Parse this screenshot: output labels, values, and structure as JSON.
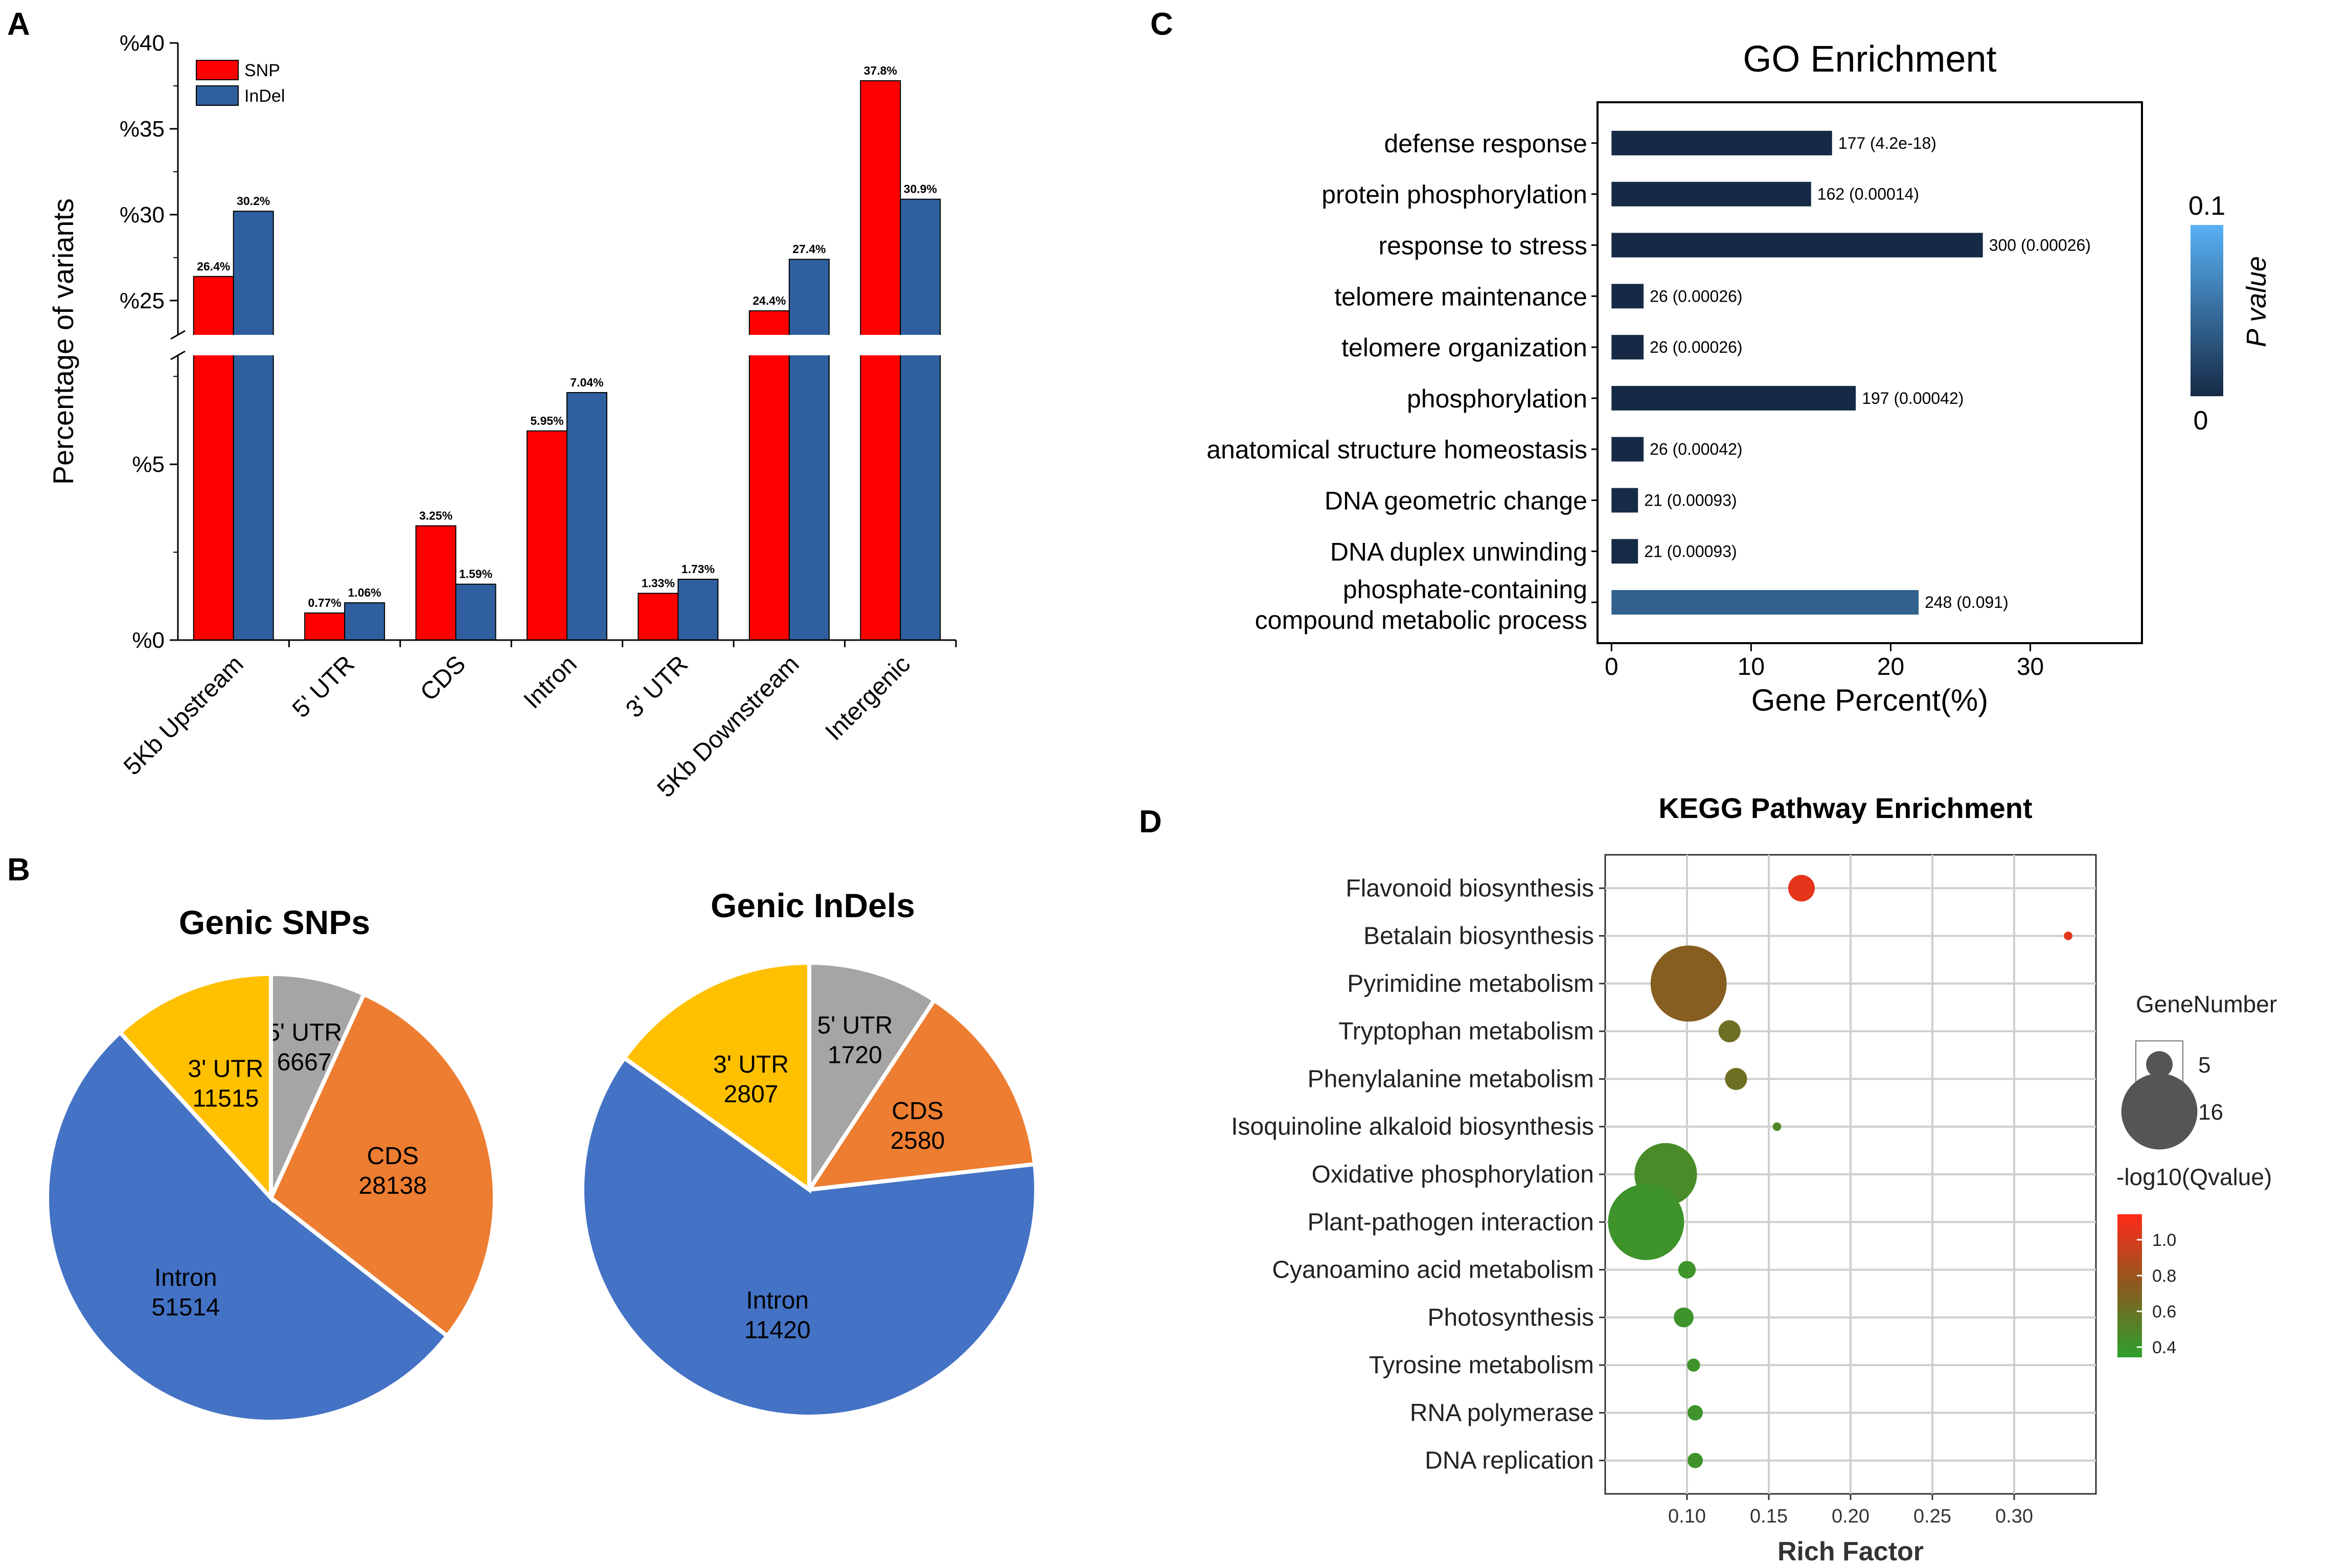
{
  "panels": {
    "a": "A",
    "b": "B",
    "c": "C",
    "d": "D"
  },
  "chart_data": [
    {
      "id": "A",
      "type": "bar",
      "ylabel": "Percentage of variants",
      "categories": [
        "5Kb Upstream",
        "5' UTR",
        "CDS",
        "Intron",
        "3' UTR",
        "5Kb Downstream",
        "Intergenic"
      ],
      "series": [
        {
          "name": "SNP",
          "color": "#ff0000",
          "values": [
            26.4,
            0.77,
            3.25,
            5.95,
            1.33,
            24.4,
            37.8
          ],
          "labels": [
            "26.4%",
            "0.77%",
            "3.25%",
            "5.95%",
            "1.33%",
            "24.4%",
            "37.8%"
          ]
        },
        {
          "name": "InDel",
          "color": "#2f5f9e",
          "values": [
            30.2,
            1.06,
            1.59,
            7.04,
            1.73,
            27.4,
            30.9
          ],
          "labels": [
            "30.2%",
            "1.06%",
            "1.59%",
            "7.04%",
            "1.73%",
            "27.4%",
            "30.9%"
          ]
        }
      ],
      "axis_break": {
        "lower_range": [
          0,
          8.1
        ],
        "upper_range": [
          23,
          40
        ]
      },
      "yticks": [
        {
          "value": 0,
          "label": "%0"
        },
        {
          "value": 5,
          "label": "%5"
        },
        {
          "value": 25,
          "label": "%25"
        },
        {
          "value": 30,
          "label": "%30"
        },
        {
          "value": 35,
          "label": "%35"
        },
        {
          "value": 40,
          "label": "%40"
        }
      ],
      "legend": "top-left"
    },
    {
      "id": "B-left",
      "type": "pie",
      "title": "Genic SNPs",
      "slices": [
        {
          "label": "5' UTR",
          "value": 6667,
          "color": "#a5a5a5"
        },
        {
          "label": "CDS",
          "value": 28138,
          "color": "#ed7d31"
        },
        {
          "label": "Intron",
          "value": 51514,
          "color": "#4472c4"
        },
        {
          "label": "3' UTR",
          "value": 11515,
          "color": "#ffc000"
        }
      ]
    },
    {
      "id": "B-right",
      "type": "pie",
      "title": "Genic InDels",
      "slices": [
        {
          "label": "5' UTR",
          "value": 1720,
          "color": "#a5a5a5"
        },
        {
          "label": "CDS",
          "value": 2580,
          "color": "#ed7d31"
        },
        {
          "label": "Intron",
          "value": 11420,
          "color": "#4472c4"
        },
        {
          "label": "3' UTR",
          "value": 2807,
          "color": "#ffc000"
        }
      ]
    },
    {
      "id": "C",
      "type": "bar",
      "orientation": "horizontal",
      "title": "GO Enrichment",
      "xlabel": "Gene Percent(%)",
      "xlim": [
        -1,
        38
      ],
      "xticks": [
        0,
        10,
        20,
        30
      ],
      "colorbar": {
        "title": "P value",
        "min_label": "0",
        "max_label": "0.1"
      },
      "bars": [
        {
          "term": [
            "defense response"
          ],
          "value": 15.8,
          "label": "177 (4.2e-18)",
          "p": 4.2e-18
        },
        {
          "term": [
            "protein phosphorylation"
          ],
          "value": 14.3,
          "label": "162 (0.00014)",
          "p": 0.00014
        },
        {
          "term": [
            "response to stress"
          ],
          "value": 26.6,
          "label": "300 (0.00026)",
          "p": 0.00026
        },
        {
          "term": [
            "telomere maintenance"
          ],
          "value": 2.3,
          "label": "26 (0.00026)",
          "p": 0.00026
        },
        {
          "term": [
            "telomere organization"
          ],
          "value": 2.3,
          "label": "26 (0.00026)",
          "p": 0.00026
        },
        {
          "term": [
            "phosphorylation"
          ],
          "value": 17.5,
          "label": "197 (0.00042)",
          "p": 0.00042
        },
        {
          "term": [
            "anatomical structure homeostasis"
          ],
          "value": 2.3,
          "label": "26 (0.00042)",
          "p": 0.00042
        },
        {
          "term": [
            "DNA geometric change"
          ],
          "value": 1.9,
          "label": "21 (0.00093)",
          "p": 0.00093
        },
        {
          "term": [
            "DNA duplex unwinding"
          ],
          "value": 1.9,
          "label": "21 (0.00093)",
          "p": 0.00093
        },
        {
          "term": [
            "phosphate-containing",
            "compound metabolic process"
          ],
          "value": 22.0,
          "label": "248 (0.091)",
          "p": 0.091
        }
      ]
    },
    {
      "id": "D",
      "type": "scatter",
      "title": "KEGG Pathway Enrichment",
      "xlabel": "Rich Factor",
      "xlim": [
        0.05,
        0.35
      ],
      "xticks": [
        0.1,
        0.15,
        0.2,
        0.25,
        0.3
      ],
      "xtick_labels": [
        "0.10",
        "0.15",
        "0.20",
        "0.25",
        "0.30"
      ],
      "size_legend_title": "GeneNumber",
      "size_legend": [
        {
          "value": 5,
          "label": "5"
        },
        {
          "value": 16,
          "label": "16"
        }
      ],
      "color_legend_title": "-log10(Qvalue)",
      "color_ticks": [
        "1.0",
        "0.8",
        "0.6",
        "0.4"
      ],
      "color_range": [
        0.3,
        1.15
      ],
      "points": [
        {
          "pathway": "Flavonoid biosynthesis",
          "x": 0.17,
          "genes": 5,
          "q": 1.05
        },
        {
          "pathway": "Betalain biosynthesis",
          "x": 0.333,
          "genes": 1,
          "q": 1.05
        },
        {
          "pathway": "Pyrimidine metabolism",
          "x": 0.101,
          "genes": 16,
          "q": 0.7
        },
        {
          "pathway": "Tryptophan metabolism",
          "x": 0.126,
          "genes": 4,
          "q": 0.6
        },
        {
          "pathway": "Phenylalanine metabolism",
          "x": 0.13,
          "genes": 4,
          "q": 0.6
        },
        {
          "pathway": "Isoquinoline alkaloid biosynthesis",
          "x": 0.155,
          "genes": 1,
          "q": 0.45
        },
        {
          "pathway": "Oxidative phosphorylation",
          "x": 0.087,
          "genes": 13,
          "q": 0.42
        },
        {
          "pathway": "Plant-pathogen interaction",
          "x": 0.075,
          "genes": 16,
          "q": 0.38
        },
        {
          "pathway": "Cyanoamino acid metabolism",
          "x": 0.1,
          "genes": 3,
          "q": 0.38
        },
        {
          "pathway": "Photosynthesis",
          "x": 0.098,
          "genes": 3.5,
          "q": 0.38
        },
        {
          "pathway": "Tyrosine metabolism",
          "x": 0.104,
          "genes": 2,
          "q": 0.38
        },
        {
          "pathway": "RNA polymerase",
          "x": 0.105,
          "genes": 2.5,
          "q": 0.38
        },
        {
          "pathway": "DNA replication",
          "x": 0.105,
          "genes": 2.5,
          "q": 0.38
        }
      ]
    }
  ]
}
